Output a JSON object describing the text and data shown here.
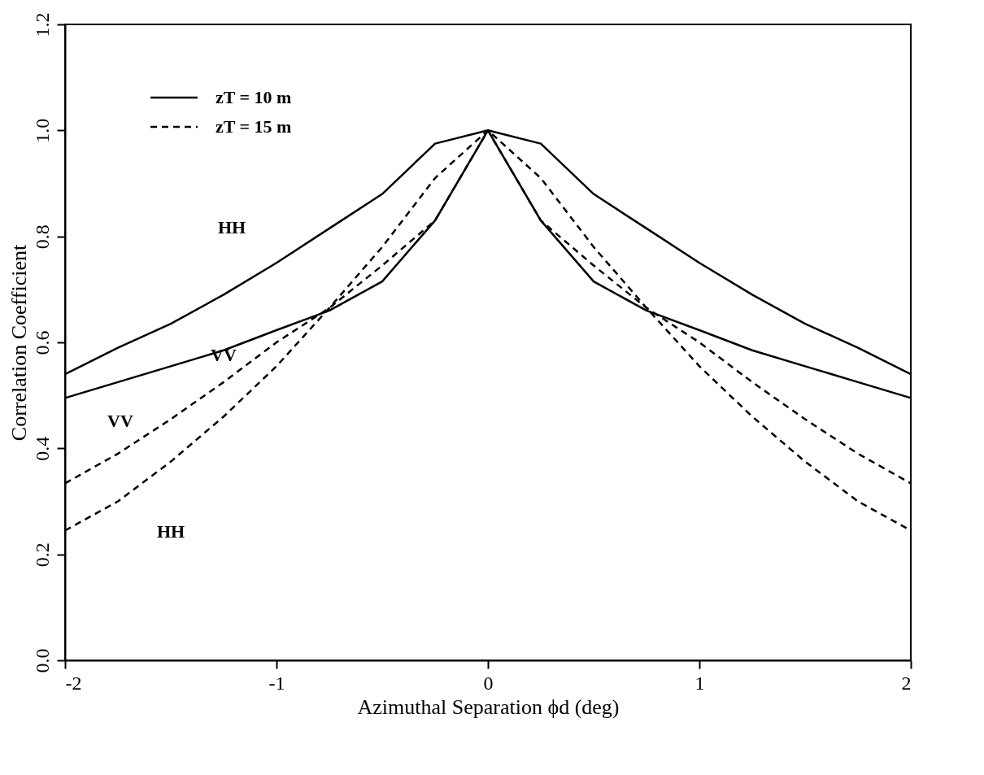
{
  "chart_data": {
    "type": "line",
    "xlabel": "Azimuthal Separation ϕd (deg)",
    "ylabel": "Correlation Coefficient",
    "x": [
      -2,
      -1.75,
      -1.5,
      -1.25,
      -1,
      -0.75,
      -0.5,
      -0.25,
      0,
      0.25,
      0.5,
      0.75,
      1,
      1.25,
      1.5,
      1.75,
      2
    ],
    "series": [
      {
        "name": "zT = 10 m",
        "color": "#000000",
        "line_style": "solid",
        "values": [
          0.54,
          0.59,
          0.635,
          0.69,
          0.75,
          0.815,
          0.88,
          0.975,
          1.0,
          0.975,
          0.88,
          0.815,
          0.75,
          0.69,
          0.635,
          0.59,
          0.54
        ]
      },
      {
        "color": "#000000",
        "line_style": "solid",
        "values": [
          0.495,
          0.525,
          0.555,
          0.585,
          0.623,
          0.66,
          0.715,
          0.83,
          1.0,
          0.83,
          0.715,
          0.66,
          0.623,
          0.585,
          0.555,
          0.525,
          0.495
        ]
      },
      {
        "name": "zT = 15 m",
        "color": "#000000",
        "line_style": "dashed",
        "values": [
          0.245,
          0.3,
          0.375,
          0.46,
          0.555,
          0.665,
          0.78,
          0.91,
          1.0,
          0.91,
          0.78,
          0.665,
          0.555,
          0.46,
          0.375,
          0.3,
          0.245
        ]
      },
      {
        "color": "#000000",
        "line_style": "dashed",
        "values": [
          0.334,
          0.39,
          0.455,
          0.525,
          0.6,
          0.665,
          0.745,
          0.83,
          1.0,
          0.83,
          0.745,
          0.665,
          0.6,
          0.525,
          0.455,
          0.39,
          0.334
        ]
      }
    ],
    "annotations": [
      "HH",
      "VV",
      "VV",
      "HH"
    ],
    "xlim": [
      -2,
      2
    ],
    "xticks": [
      -2,
      -1,
      0,
      1,
      2
    ],
    "ylim": [
      0,
      1.2
    ],
    "yticks": [
      {
        "value": 0,
        "label": "0.0"
      },
      {
        "value": 0.2,
        "label": "0.2"
      },
      {
        "value": 0.4,
        "label": "0.4"
      },
      {
        "value": 0.6,
        "label": "0.6"
      },
      {
        "value": 0.8,
        "label": "0.8"
      },
      {
        "value": 1.0,
        "label": "1.0"
      },
      {
        "value": 1.2,
        "label": "1.2"
      }
    ],
    "grid": false,
    "legend": "top left",
    "marker": "none"
  }
}
